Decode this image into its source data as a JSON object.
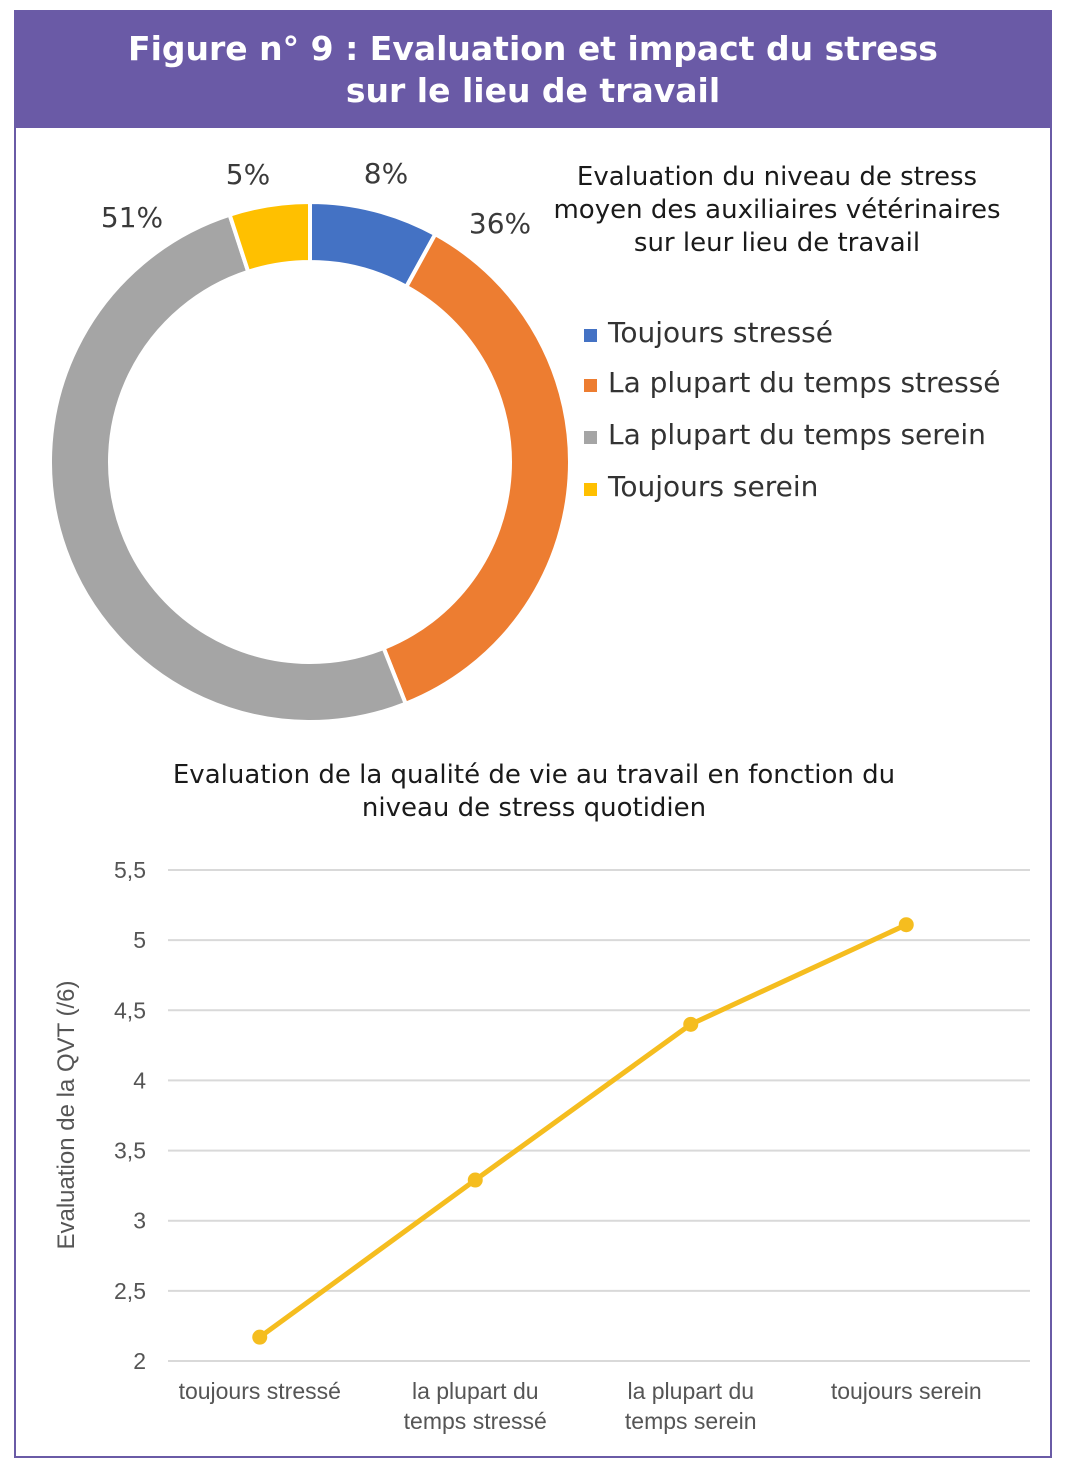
{
  "figure": {
    "title_line1": "Figure n° 9 : Evaluation et impact du stress",
    "title_line2": "sur le lieu de travail"
  },
  "chart_data": [
    {
      "type": "pie",
      "subtype": "donut",
      "title_lines": [
        "Evaluation du niveau de stress",
        "moyen des auxiliaires vétérinaires",
        "sur leur lieu de travail"
      ],
      "categories": [
        "Toujours stressé",
        "La plupart du temps stressé",
        "La plupart du temps serein",
        "Toujours serein"
      ],
      "values": [
        8,
        36,
        51,
        5
      ],
      "labels": [
        "8%",
        "36%",
        "51%",
        "5%"
      ],
      "colors": [
        "#4472c4",
        "#ed7d31",
        "#a5a5a5",
        "#ffc000"
      ],
      "legend": "right"
    },
    {
      "type": "line",
      "title_lines": [
        "Evaluation de la qualité de vie au travail en fonction du",
        "niveau de stress quotidien"
      ],
      "categories": [
        [
          "toujours stressé"
        ],
        [
          "la plupart du",
          "temps stressé"
        ],
        [
          "la plupart du",
          "temps serein"
        ],
        [
          "toujours serein"
        ]
      ],
      "values": [
        2.17,
        3.29,
        4.4,
        5.11
      ],
      "ylabel": "Evaluation de la QVT (/6)",
      "ylim": [
        2,
        5.5
      ],
      "yticks": [
        2,
        2.5,
        3,
        3.5,
        4,
        4.5,
        5,
        5.5
      ],
      "ytick_labels": [
        "2",
        "2,5",
        "3",
        "3,5",
        "4",
        "4,5",
        "5",
        "5,5"
      ],
      "grid": true,
      "color": "#f5bd1f"
    }
  ]
}
